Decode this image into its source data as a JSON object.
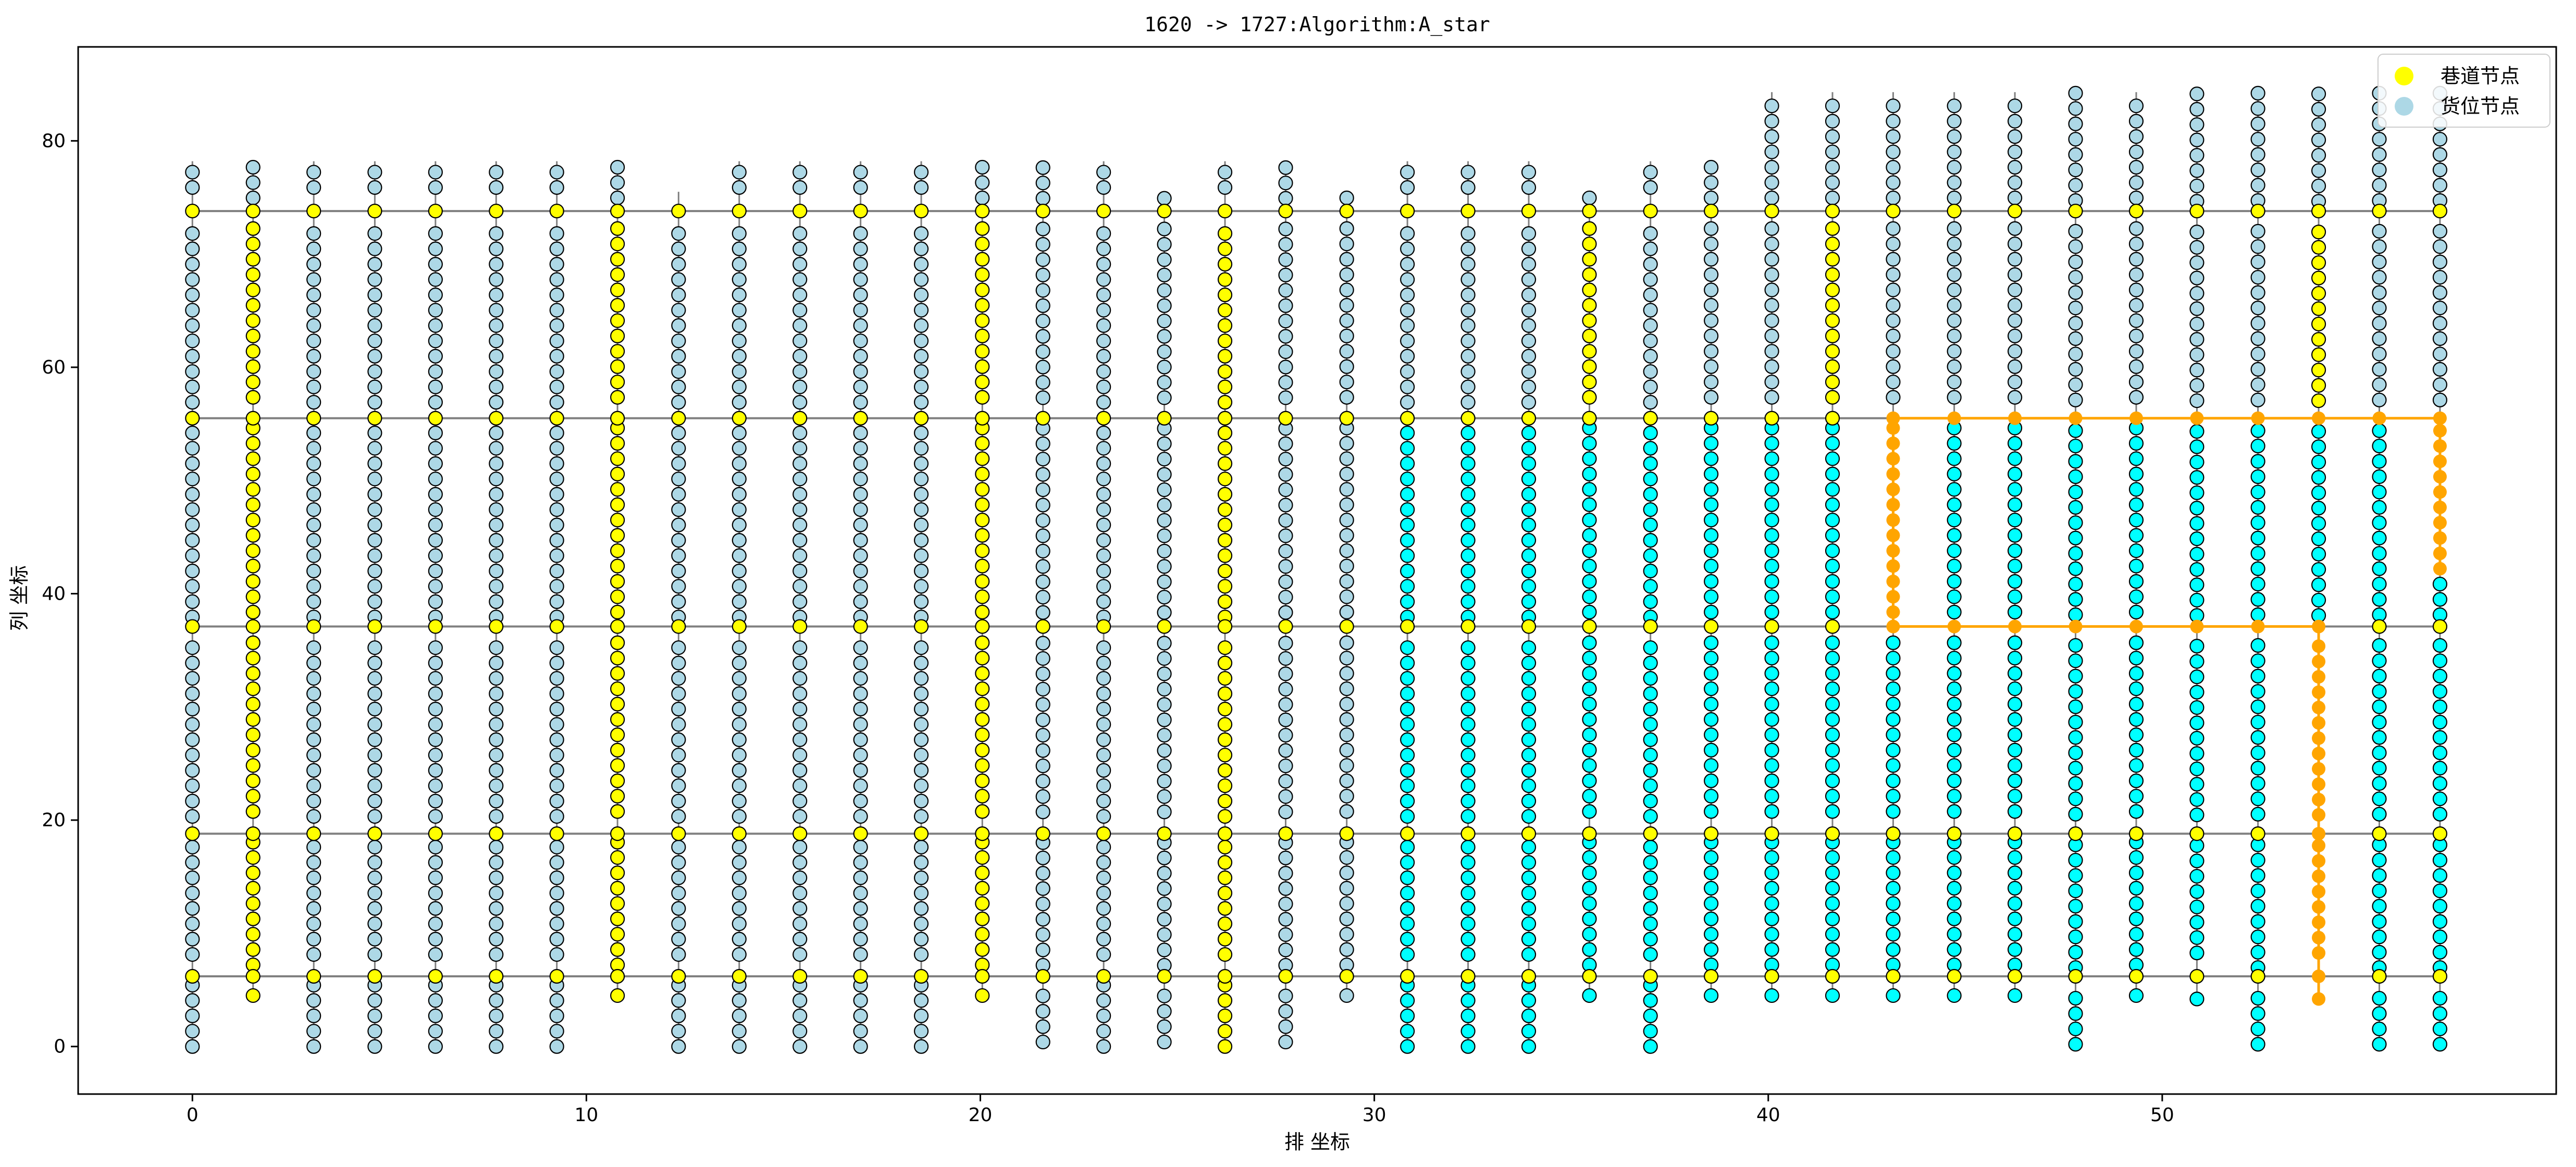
{
  "chart_data": {
    "type": "scatter",
    "title": "1620 -> 1727:Algorithm:A_star",
    "xlabel": "排 坐标",
    "ylabel": "列 坐标",
    "xlim": [
      -2.9,
      60.0
    ],
    "ylim": [
      -4.2,
      88.3
    ],
    "xticks": [
      0,
      10,
      20,
      30,
      40,
      50
    ],
    "yticks": [
      0,
      20,
      40,
      60,
      80
    ],
    "legend": {
      "placement": "top-right",
      "entries": [
        {
          "label": "巷道节点",
          "color": "#ffff00"
        },
        {
          "label": "货位节点",
          "color": "#add8e6"
        }
      ]
    },
    "colors": {
      "aisle_node": "#ffff00",
      "storage_node": "#add8e6",
      "explored_node": "#00ffff",
      "path_node": "#ffa500",
      "path_line": "#ffa500",
      "aisle_line": "#808080"
    },
    "grid": false,
    "aisle_rows_y": [
      6.2,
      18.8,
      37.1,
      55.5,
      73.8
    ],
    "columns_x": [
      0,
      1.54,
      3.08,
      4.63,
      6.17,
      7.71,
      9.25,
      10.79,
      12.34,
      13.88,
      15.42,
      16.96,
      18.5,
      20.05,
      21.59,
      23.13,
      24.67,
      26.21,
      27.75,
      29.3,
      30.84,
      32.38,
      33.92,
      35.46,
      37.01,
      38.55,
      40.09,
      41.63,
      43.17,
      44.72,
      46.26,
      47.8,
      49.34,
      50.88,
      52.43,
      53.97,
      55.51,
      57.05
    ],
    "yellow_aisle_columns_x": [
      1.54,
      10.79,
      20.05,
      26.21,
      35.46,
      41.63,
      53.97
    ],
    "explored_cyan_columns_x": [
      30.84,
      32.38,
      33.92,
      35.46,
      37.01,
      38.55,
      40.09,
      41.63,
      43.17,
      44.72,
      46.26,
      47.8,
      49.34,
      50.88,
      52.43,
      53.97,
      55.51,
      57.05
    ],
    "top_column_extent_y": [
      78.2,
      78.2,
      78.2,
      78.2,
      78.2,
      78.2,
      78.2,
      78.2,
      75.5,
      78.2,
      78.2,
      78.2,
      78.2,
      78.2,
      78.2,
      78.2,
      75.5,
      78.2,
      78.2,
      75.5,
      78.2,
      78.2,
      78.2,
      75.5,
      78.2,
      78.2,
      84.3,
      84.3,
      84.3,
      84.3,
      84.3,
      84.3,
      84.3,
      84.3,
      84.3,
      84.3,
      84.3,
      84.3
    ],
    "bottom_column_start_y": [
      0,
      4.5,
      0,
      0,
      0,
      0,
      0,
      4.5,
      0,
      0,
      0,
      0,
      0,
      4.5,
      0.4,
      0,
      0.4,
      0,
      0.4,
      4.5,
      0,
      0,
      0,
      4.5,
      0,
      4.5,
      4.5,
      4.5,
      4.5,
      4.5,
      4.5,
      0.2,
      4.5,
      4.2,
      0.2,
      4.2,
      0.2,
      0.2
    ],
    "path": {
      "start": {
        "x": 57.05,
        "y": 41.7
      },
      "end": {
        "x": 53.97,
        "y": 4.2
      },
      "waypoints": [
        [
          57.05,
          41.7
        ],
        [
          57.05,
          55.5
        ],
        [
          43.17,
          55.5
        ],
        [
          43.17,
          37.1
        ],
        [
          53.97,
          37.1
        ],
        [
          53.97,
          4.2
        ]
      ]
    }
  }
}
